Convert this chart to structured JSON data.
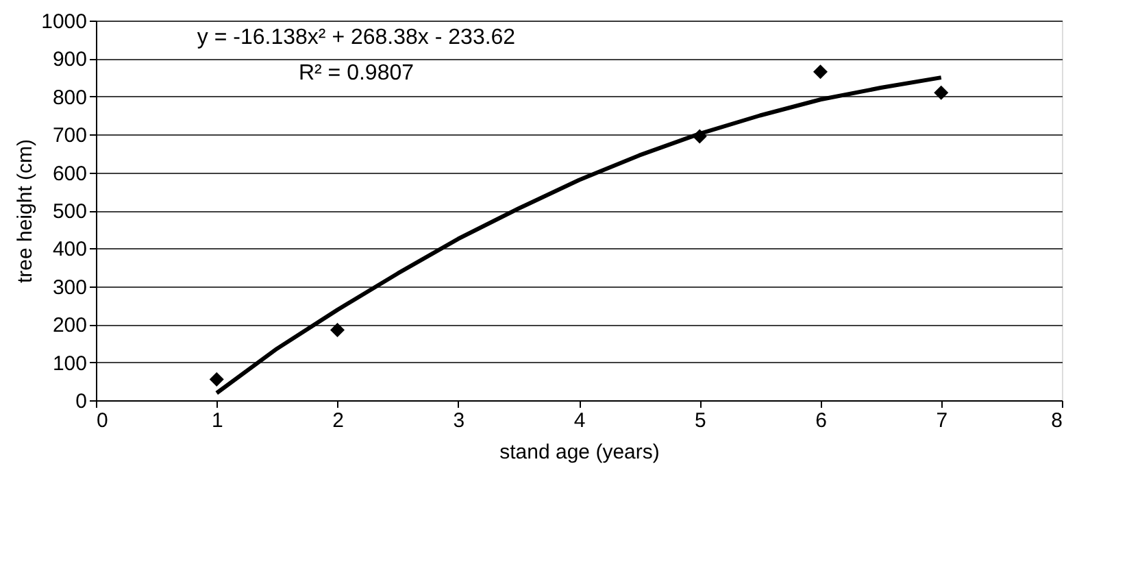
{
  "chart_data": {
    "type": "scatter",
    "xlabel": "stand age (years)",
    "ylabel": "tree height (cm)",
    "xlim": [
      0,
      8
    ],
    "xticks": [
      0,
      1,
      2,
      3,
      4,
      5,
      6,
      7,
      8
    ],
    "ylim": [
      0,
      1000
    ],
    "yticks": [
      0,
      100,
      200,
      300,
      400,
      500,
      600,
      700,
      800,
      900,
      1000
    ],
    "grid": "y",
    "marker": "diamond",
    "series": [
      {
        "color": "#000000",
        "x": [
          1,
          2,
          5,
          6,
          7
        ],
        "values": [
          55,
          185,
          695,
          865,
          810
        ]
      },
      {
        "type": "line",
        "color": "#000000",
        "marker": "none",
        "x": [
          1,
          1.5,
          2,
          2.5,
          3,
          3.5,
          4,
          4.5,
          5,
          5.5,
          6,
          6.5,
          7
        ],
        "values": [
          19,
          136,
          238,
          334,
          425,
          505,
          580,
          645,
          702,
          750,
          792,
          823,
          850
        ]
      }
    ],
    "annotations": [
      "y = -16.138x² + 268.38x - 233.62",
      "R² = 0.9807"
    ]
  }
}
